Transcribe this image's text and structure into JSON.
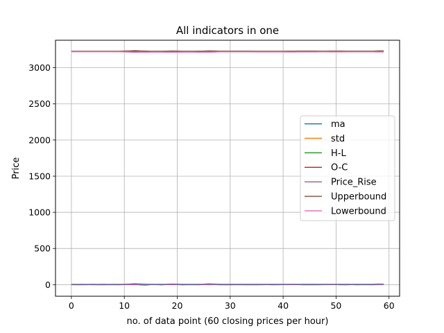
{
  "chart_data": {
    "type": "line",
    "title": "All indicators in one",
    "xlabel": "no. of data point (60 closing prices per hour)",
    "ylabel": "Price",
    "xlim": [
      -3,
      62
    ],
    "ylim": [
      -160,
      3380
    ],
    "xticks": [
      0,
      10,
      20,
      30,
      40,
      50,
      60
    ],
    "yticks": [
      0,
      500,
      1000,
      1500,
      2000,
      2500,
      3000
    ],
    "grid": true,
    "legend_position": "center-right",
    "x": [
      0,
      1,
      2,
      3,
      4,
      5,
      6,
      7,
      8,
      9,
      10,
      11,
      12,
      13,
      14,
      15,
      16,
      17,
      18,
      19,
      20,
      21,
      22,
      23,
      24,
      25,
      26,
      27,
      28,
      29,
      30,
      31,
      32,
      33,
      34,
      35,
      36,
      37,
      38,
      39,
      40,
      41,
      42,
      43,
      44,
      45,
      46,
      47,
      48,
      49,
      50,
      51,
      52,
      53,
      54,
      55,
      56,
      57,
      58,
      59
    ],
    "series": [
      {
        "name": "ma",
        "color": "#1f77b4",
        "values": [
          3224,
          3224,
          3224,
          3224,
          3224,
          3224,
          3224,
          3224,
          3224,
          3224,
          3224,
          3224,
          3224,
          3223,
          3222,
          3222,
          3222,
          3222,
          3222,
          3222,
          3222,
          3222,
          3222,
          3222,
          3222,
          3223,
          3224,
          3224,
          3224,
          3224,
          3224,
          3224,
          3224,
          3224,
          3224,
          3223,
          3223,
          3223,
          3223,
          3223,
          3223,
          3223,
          3223,
          3224,
          3224,
          3224,
          3224,
          3224,
          3224,
          3224,
          3224,
          3224,
          3224,
          3224,
          3224,
          3224,
          3224,
          3224,
          3225,
          3225
        ]
      },
      {
        "name": "std",
        "color": "#ff7f0e",
        "values": [
          2,
          2,
          2,
          2,
          2,
          2,
          2,
          2,
          2,
          2,
          3,
          4,
          6,
          5,
          4,
          3,
          3,
          3,
          3,
          4,
          4,
          3,
          3,
          3,
          3,
          4,
          5,
          4,
          3,
          3,
          3,
          3,
          3,
          3,
          3,
          3,
          3,
          3,
          3,
          3,
          3,
          3,
          3,
          3,
          3,
          3,
          3,
          3,
          3,
          3,
          3,
          3,
          3,
          3,
          3,
          3,
          3,
          3,
          4,
          4
        ]
      },
      {
        "name": "H-L",
        "color": "#2ca02c",
        "values": [
          5,
          4,
          5,
          4,
          5,
          4,
          5,
          4,
          5,
          4,
          6,
          8,
          12,
          9,
          7,
          6,
          5,
          5,
          6,
          8,
          7,
          6,
          5,
          5,
          6,
          7,
          10,
          8,
          6,
          5,
          5,
          6,
          5,
          5,
          5,
          5,
          5,
          5,
          5,
          5,
          5,
          6,
          6,
          5,
          5,
          5,
          5,
          5,
          5,
          5,
          6,
          6,
          5,
          5,
          5,
          5,
          5,
          5,
          8,
          7
        ]
      },
      {
        "name": "O-C",
        "color": "#d62728",
        "values": [
          1,
          -1,
          1,
          0,
          1,
          -1,
          0,
          1,
          0,
          -1,
          2,
          4,
          8,
          -3,
          -5,
          1,
          2,
          -2,
          3,
          5,
          2,
          -2,
          1,
          0,
          -1,
          3,
          6,
          2,
          0,
          1,
          -1,
          1,
          0,
          1,
          0,
          -1,
          0,
          1,
          -1,
          0,
          1,
          2,
          3,
          1,
          0,
          1,
          -1,
          0,
          1,
          2,
          1,
          0,
          0,
          1,
          -1,
          0,
          1,
          0,
          3,
          2
        ]
      },
      {
        "name": "Price_Rise",
        "color": "#9467bd",
        "values": [
          1,
          0,
          1,
          1,
          0,
          1,
          0,
          1,
          1,
          0,
          1,
          1,
          1,
          0,
          0,
          1,
          1,
          0,
          1,
          1,
          1,
          0,
          1,
          1,
          0,
          1,
          1,
          1,
          0,
          1,
          0,
          1,
          1,
          0,
          1,
          0,
          1,
          1,
          0,
          1,
          1,
          1,
          1,
          1,
          0,
          1,
          0,
          1,
          1,
          1,
          1,
          0,
          0,
          1,
          0,
          1,
          1,
          0,
          1,
          1
        ]
      },
      {
        "name": "Upperbound",
        "color": "#8c564b",
        "values": [
          3228,
          3228,
          3228,
          3228,
          3228,
          3228,
          3228,
          3228,
          3228,
          3228,
          3230,
          3232,
          3236,
          3232,
          3230,
          3228,
          3228,
          3228,
          3229,
          3231,
          3230,
          3228,
          3228,
          3228,
          3229,
          3230,
          3233,
          3231,
          3229,
          3229,
          3229,
          3229,
          3229,
          3229,
          3229,
          3228,
          3228,
          3228,
          3228,
          3228,
          3228,
          3229,
          3229,
          3230,
          3230,
          3230,
          3230,
          3229,
          3229,
          3230,
          3230,
          3230,
          3229,
          3229,
          3229,
          3229,
          3229,
          3229,
          3233,
          3232
        ]
      },
      {
        "name": "Lowerbound",
        "color": "#e377c2",
        "values": [
          3220,
          3220,
          3220,
          3220,
          3220,
          3220,
          3220,
          3220,
          3220,
          3220,
          3218,
          3216,
          3212,
          3214,
          3214,
          3216,
          3216,
          3216,
          3215,
          3214,
          3214,
          3216,
          3216,
          3216,
          3215,
          3215,
          3214,
          3216,
          3219,
          3219,
          3219,
          3219,
          3219,
          3219,
          3219,
          3218,
          3218,
          3218,
          3218,
          3218,
          3218,
          3217,
          3217,
          3218,
          3218,
          3218,
          3218,
          3219,
          3219,
          3218,
          3218,
          3218,
          3219,
          3219,
          3219,
          3219,
          3219,
          3219,
          3217,
          3218
        ]
      }
    ]
  }
}
